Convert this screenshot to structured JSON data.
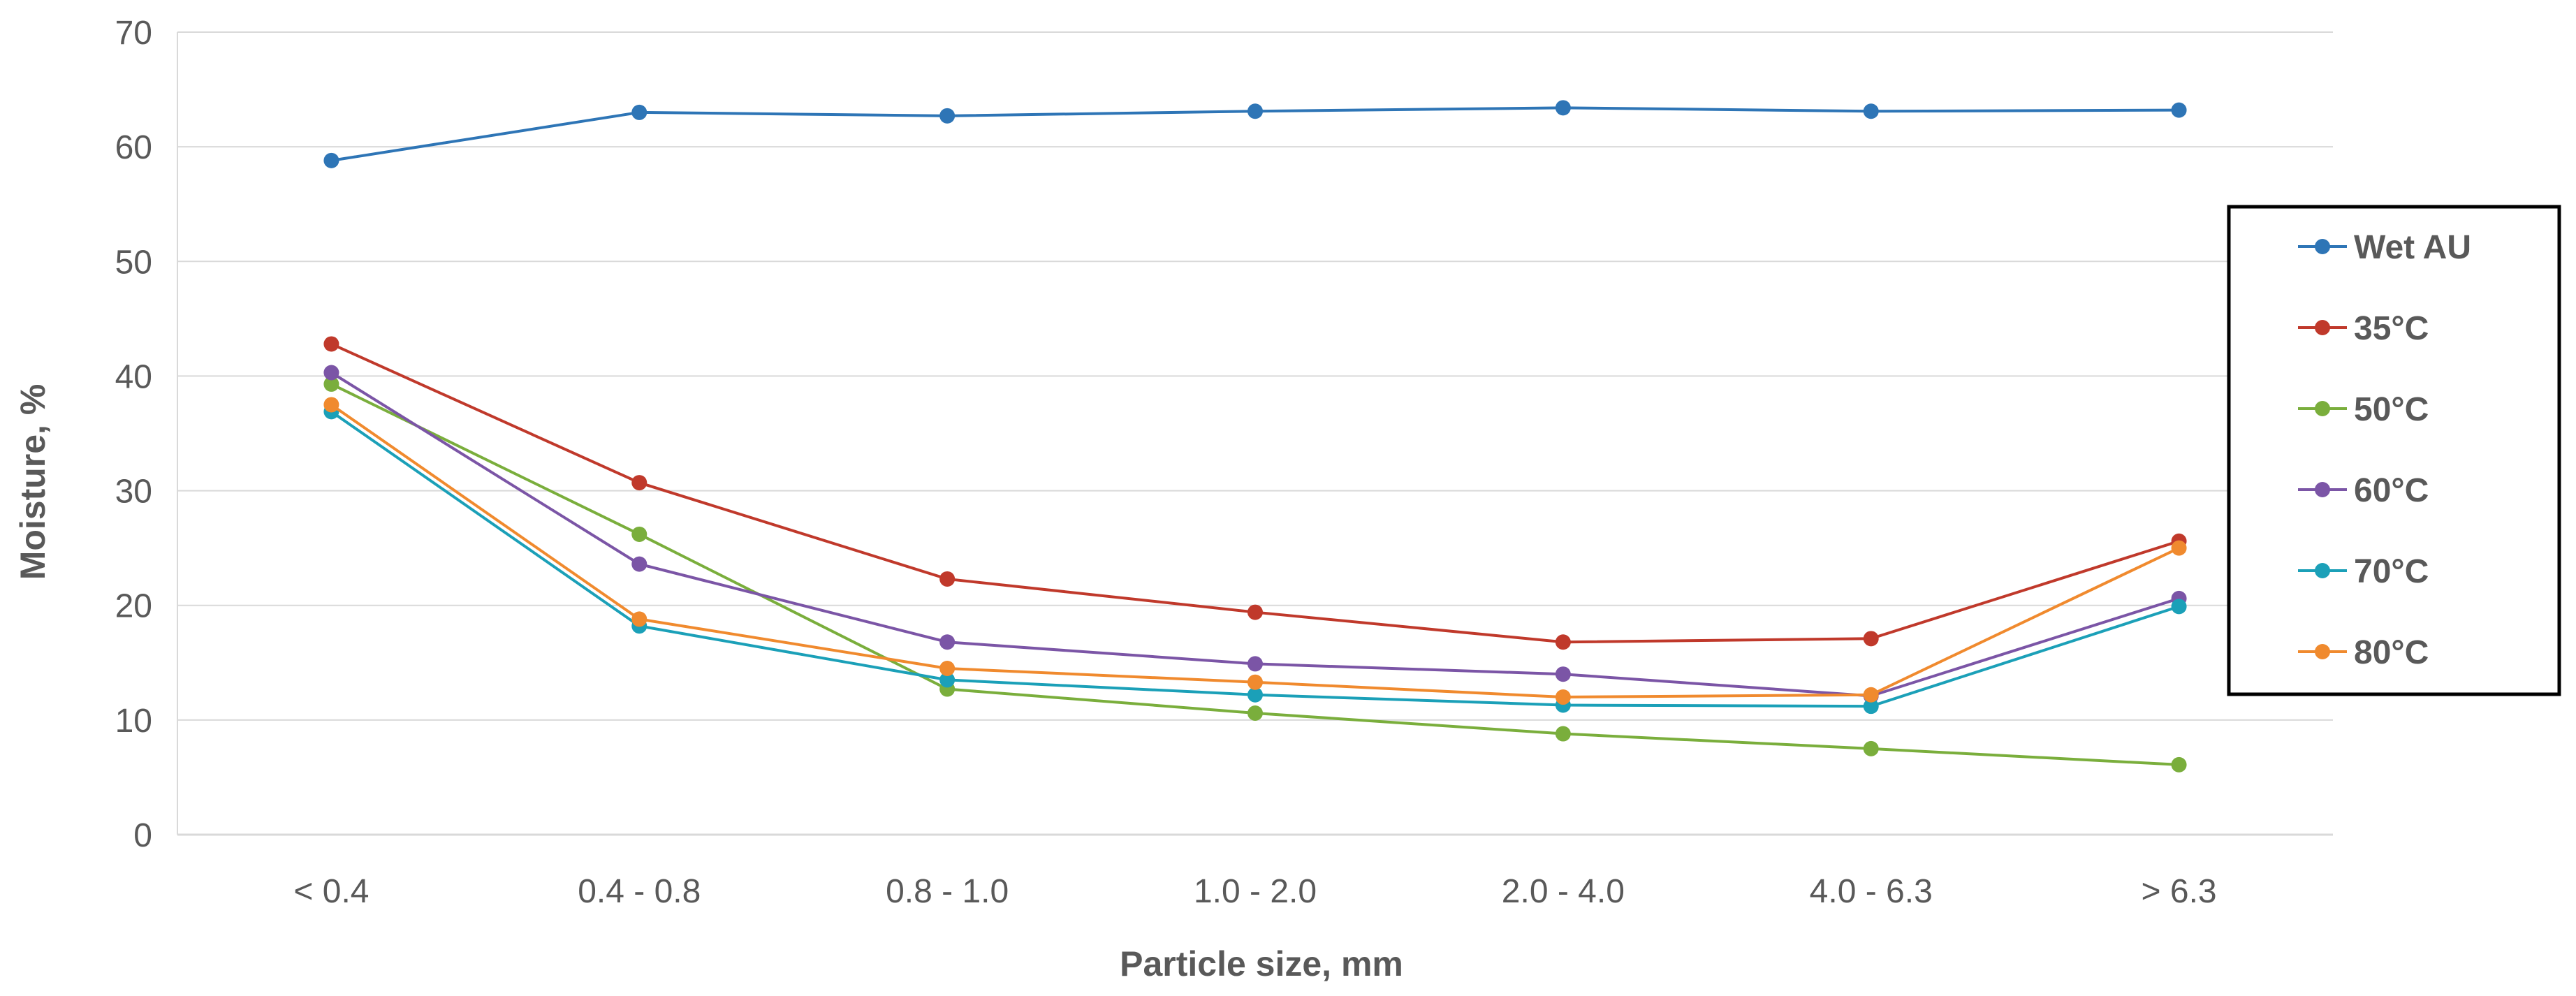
{
  "chart_data": {
    "type": "line",
    "title": "",
    "xlabel": "Particle size, mm",
    "ylabel": "Moisture, %",
    "categories": [
      "< 0.4",
      "0.4 - 0.8",
      "0.8 - 1.0",
      "1.0 - 2.0",
      "2.0 - 4.0",
      "4.0 - 6.3",
      "> 6.3"
    ],
    "ylim": [
      0,
      70
    ],
    "yticks": [
      0,
      10,
      20,
      30,
      40,
      50,
      60,
      70
    ],
    "grid": true,
    "legend_position": "right",
    "series": [
      {
        "name": "Wet AU",
        "color": "#2E75B6",
        "values": [
          58.8,
          63.0,
          62.7,
          63.1,
          63.4,
          63.1,
          63.2
        ]
      },
      {
        "name": "35°C",
        "color": "#C0392B",
        "values": [
          42.8,
          30.7,
          22.3,
          19.4,
          16.8,
          17.1,
          25.6
        ]
      },
      {
        "name": "50°C",
        "color": "#7AAE3C",
        "values": [
          39.3,
          26.2,
          12.7,
          10.6,
          8.8,
          7.5,
          6.1
        ]
      },
      {
        "name": "60°C",
        "color": "#7B55A6",
        "values": [
          40.3,
          23.6,
          16.8,
          14.9,
          14.0,
          12.1,
          20.6
        ]
      },
      {
        "name": "70°C",
        "color": "#1BA0B8",
        "values": [
          36.9,
          18.2,
          13.5,
          12.2,
          11.3,
          11.2,
          19.9
        ]
      },
      {
        "name": "80°C",
        "color": "#F08A2E",
        "values": [
          37.5,
          18.8,
          14.5,
          13.3,
          12.0,
          12.2,
          25.0
        ]
      }
    ]
  }
}
